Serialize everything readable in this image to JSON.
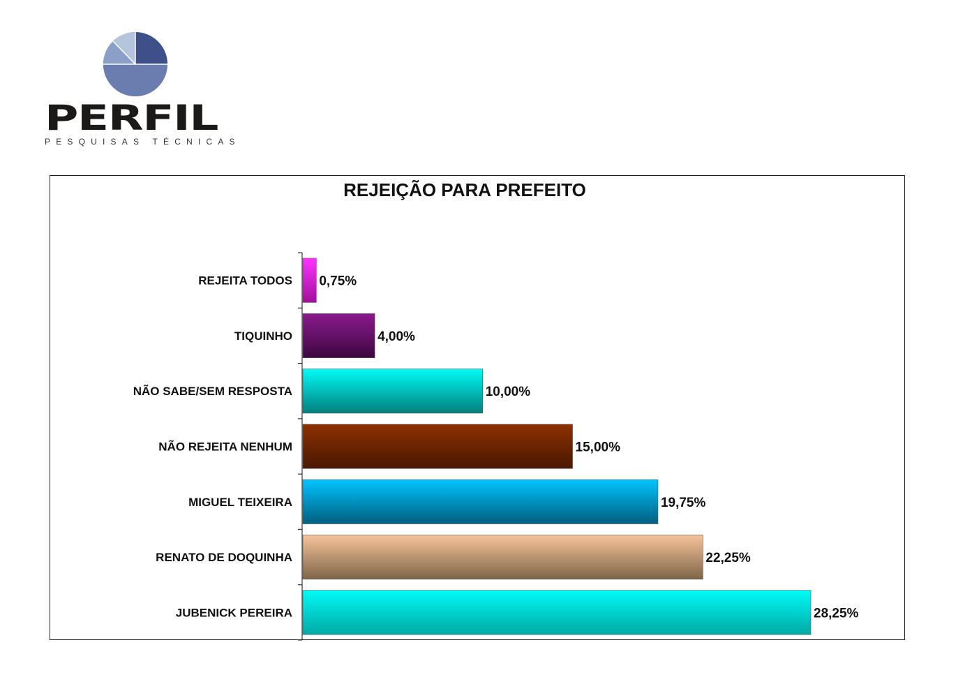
{
  "logo": {
    "brand": "PERFIL",
    "tagline": "PESQUISAS TÉCNICAS",
    "icon": "pie-chart-logo-icon"
  },
  "chart_data": {
    "type": "bar",
    "orientation": "horizontal",
    "title": "REJEIÇÃO PARA PREFEITO",
    "xlabel": "",
    "ylabel": "",
    "xlim": [
      0,
      30
    ],
    "grid": false,
    "legend": "none",
    "categories": [
      "REJEITA TODOS",
      "TIQUINHO",
      "NÃO SABE/SEM RESPOSTA",
      "NÃO REJEITA NENHUM",
      "MIGUEL TEIXEIRA",
      "RENATO DE DOQUINHA",
      "JUBENICK PEREIRA"
    ],
    "values": [
      0.75,
      4.0,
      10.0,
      15.0,
      19.75,
      22.25,
      28.25
    ],
    "value_labels": [
      "0,75%",
      "4,00%",
      "10,00%",
      "15,00%",
      "19,75%",
      "22,25%",
      "28,25%"
    ],
    "colors": [
      [
        "#ff33ff",
        "#a0109a"
      ],
      [
        "#8a1a8c",
        "#3d0840"
      ],
      [
        "#00fbf6",
        "#007f7c"
      ],
      [
        "#8c3000",
        "#4a1803"
      ],
      [
        "#00c4ff",
        "#005f7f"
      ],
      [
        "#f7c49b",
        "#7e6548"
      ],
      [
        "#00fbf6",
        "#00a9a5"
      ]
    ]
  }
}
